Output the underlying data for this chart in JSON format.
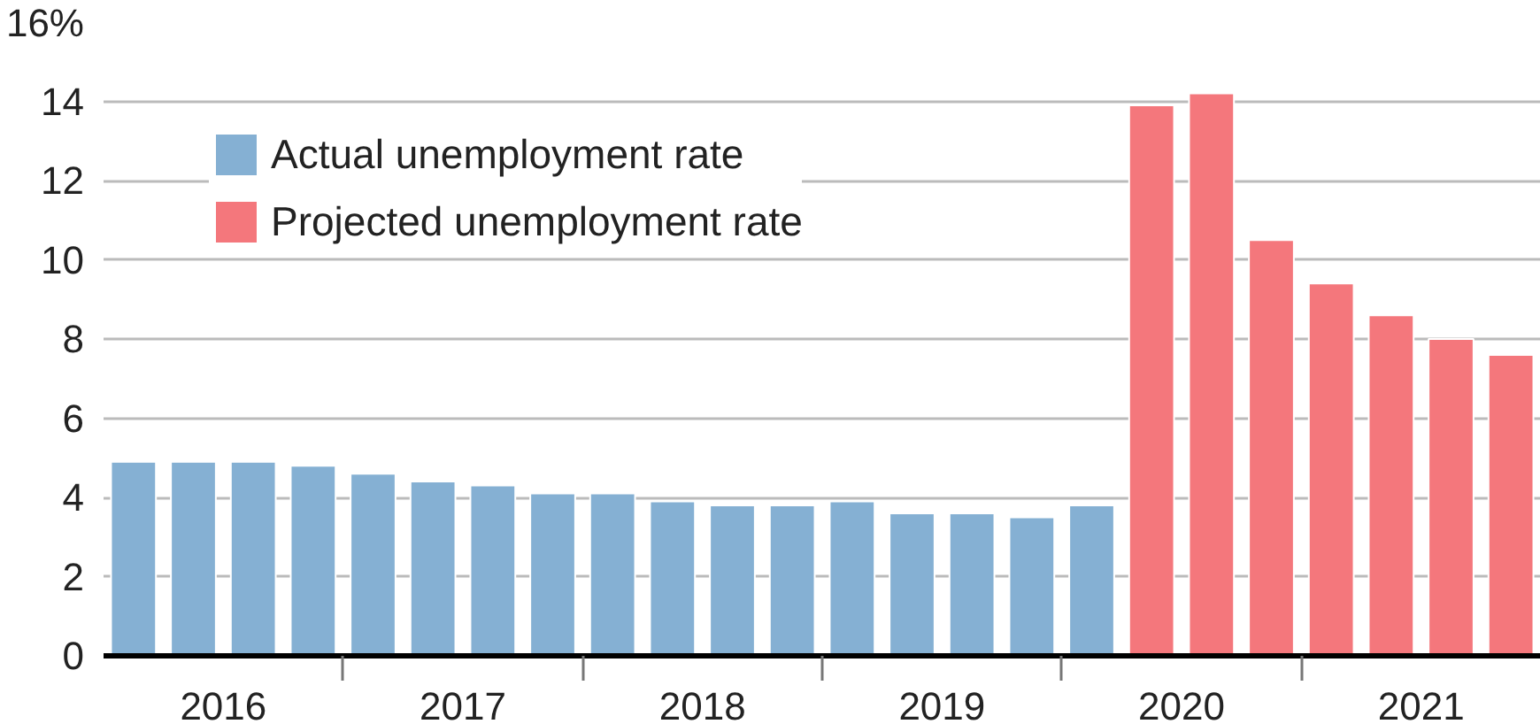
{
  "chart_data": {
    "type": "bar",
    "series": [
      {
        "name": "Actual unemployment rate",
        "color": "#85b0d3",
        "x": [
          2016.125,
          2016.375,
          2016.625,
          2016.875,
          2017.125,
          2017.375,
          2017.625,
          2017.875,
          2018.125,
          2018.375,
          2018.625,
          2018.875,
          2019.125,
          2019.375,
          2019.625,
          2019.875,
          2020.125
        ],
        "values": [
          4.9,
          4.9,
          4.9,
          4.8,
          4.6,
          4.4,
          4.3,
          4.1,
          4.1,
          3.9,
          3.8,
          3.8,
          3.9,
          3.6,
          3.6,
          3.5,
          3.8
        ]
      },
      {
        "name": "Projected unemployment rate",
        "color": "#f4777c",
        "x": [
          2020.375,
          2020.625,
          2020.875,
          2021.125,
          2021.375,
          2021.625,
          2021.875
        ],
        "values": [
          13.9,
          14.2,
          10.5,
          9.4,
          8.6,
          8.0,
          7.6
        ]
      }
    ],
    "xlim": [
      2016,
      2022
    ],
    "xticks": [
      {
        "value": 2016.5,
        "label": "2016"
      },
      {
        "value": 2017,
        "label": null
      },
      {
        "value": 2017.5,
        "label": "2017"
      },
      {
        "value": 2018,
        "label": null
      },
      {
        "value": 2018.5,
        "label": "2018"
      },
      {
        "value": 2019,
        "label": null
      },
      {
        "value": 2019.5,
        "label": "2019"
      },
      {
        "value": 2020,
        "label": null
      },
      {
        "value": 2020.5,
        "label": "2020"
      },
      {
        "value": 2021,
        "label": null
      },
      {
        "value": 2021.5,
        "label": "2021"
      }
    ],
    "ylim": [
      0,
      16
    ],
    "yticks": [
      0,
      2,
      4,
      6,
      8,
      10,
      12,
      14,
      {
        "value": 16,
        "label": "16%"
      }
    ],
    "grid": "y",
    "legend": "top left"
  }
}
